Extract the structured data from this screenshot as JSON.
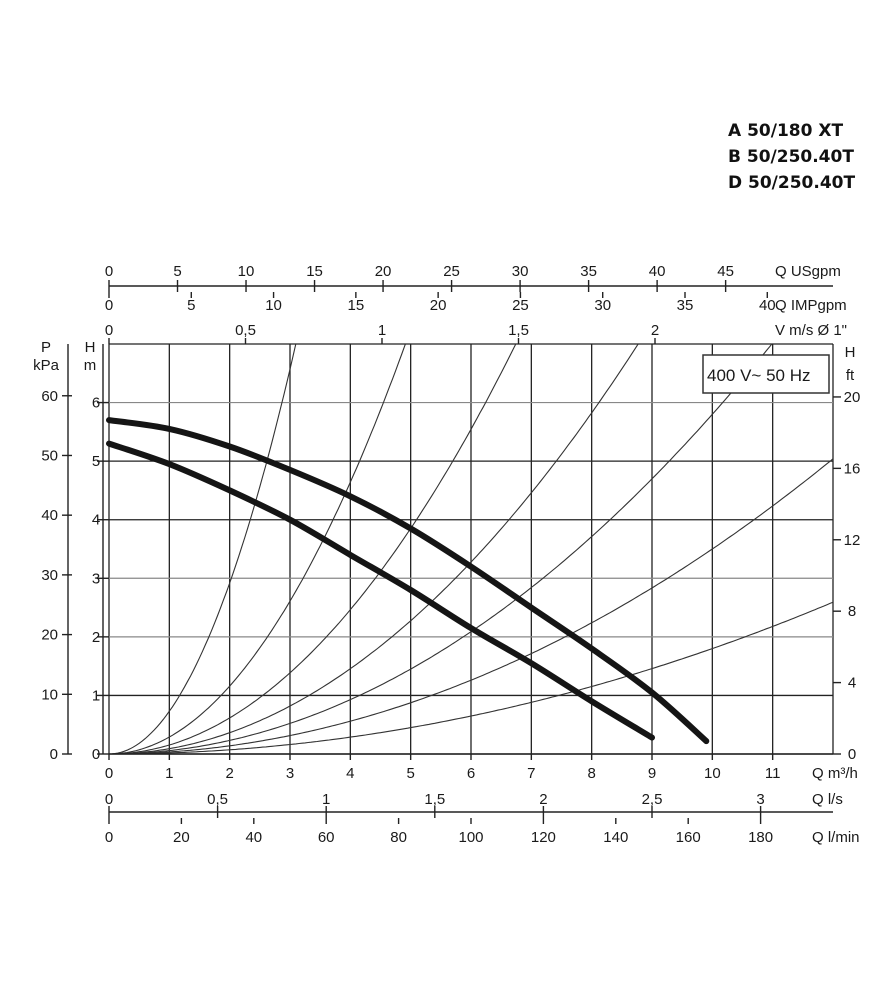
{
  "models": [
    "A 50/180 XT",
    "B 50/250.40T",
    "D 50/250.40T"
  ],
  "chart_data": {
    "type": "line",
    "supply_label": "400 V~ 50 Hz",
    "x": {
      "label": "Q m³/h",
      "ticks": [
        "0",
        "1",
        "2",
        "3",
        "4",
        "5",
        "6",
        "7",
        "8",
        "9",
        "10",
        "11"
      ],
      "range": [
        0,
        12
      ]
    },
    "y_left_m": {
      "label_top": "H",
      "label_unit": "m",
      "ticks": [
        "0",
        "1",
        "2",
        "3",
        "4",
        "5",
        "6"
      ],
      "range": [
        0,
        7
      ]
    },
    "y_left_kpa": {
      "label_top": "P",
      "label_unit": "kPa",
      "ticks": [
        "0",
        "10",
        "20",
        "30",
        "40",
        "50",
        "60"
      ]
    },
    "y_right_ft": {
      "label_top": "H",
      "label_unit": "ft",
      "ticks": [
        "0",
        "4",
        "8",
        "12",
        "16",
        "20"
      ]
    },
    "top_axes": {
      "us_gpm": {
        "label": "Q USgpm",
        "ticks": [
          "0",
          "5",
          "10",
          "15",
          "20",
          "25",
          "30",
          "35",
          "40",
          "45"
        ]
      },
      "imp_gpm": {
        "label": "Q IMPgpm",
        "ticks": [
          "0",
          "5",
          "10",
          "15",
          "20",
          "25",
          "30",
          "35",
          "40"
        ]
      },
      "velocity": {
        "label": "V m/s Ø 1\"",
        "ticks": [
          "0",
          "0,5",
          "1",
          "1,5",
          "2"
        ]
      }
    },
    "bottom_axes": {
      "l_s": {
        "label": "Q l/s",
        "ticks": [
          "0",
          "0,5",
          "1",
          "1,5",
          "2",
          "2,5",
          "3"
        ]
      },
      "l_min": {
        "label": "Q l/min",
        "ticks": [
          "0",
          "20",
          "40",
          "60",
          "80",
          "100",
          "120",
          "140",
          "160",
          "180"
        ]
      }
    },
    "series": [
      {
        "x": [
          0,
          1,
          2,
          3,
          4,
          5,
          6,
          7,
          8,
          9,
          9.9
        ],
        "y": [
          5.7,
          5.55,
          5.25,
          4.85,
          4.4,
          3.85,
          3.2,
          2.5,
          1.8,
          1.05,
          0.22
        ]
      },
      {
        "x": [
          0,
          1,
          2,
          3,
          4,
          5,
          6,
          7,
          8,
          9.0
        ],
        "y": [
          5.3,
          4.95,
          4.5,
          4.0,
          3.4,
          2.8,
          2.15,
          1.55,
          0.9,
          0.28
        ]
      }
    ],
    "system_curves": [
      {
        "k": 0.73
      },
      {
        "k": 0.29
      },
      {
        "k": 0.154
      },
      {
        "k": 0.091
      },
      {
        "k": 0.058
      },
      {
        "k": 0.035
      },
      {
        "k": 0.018
      }
    ]
  }
}
